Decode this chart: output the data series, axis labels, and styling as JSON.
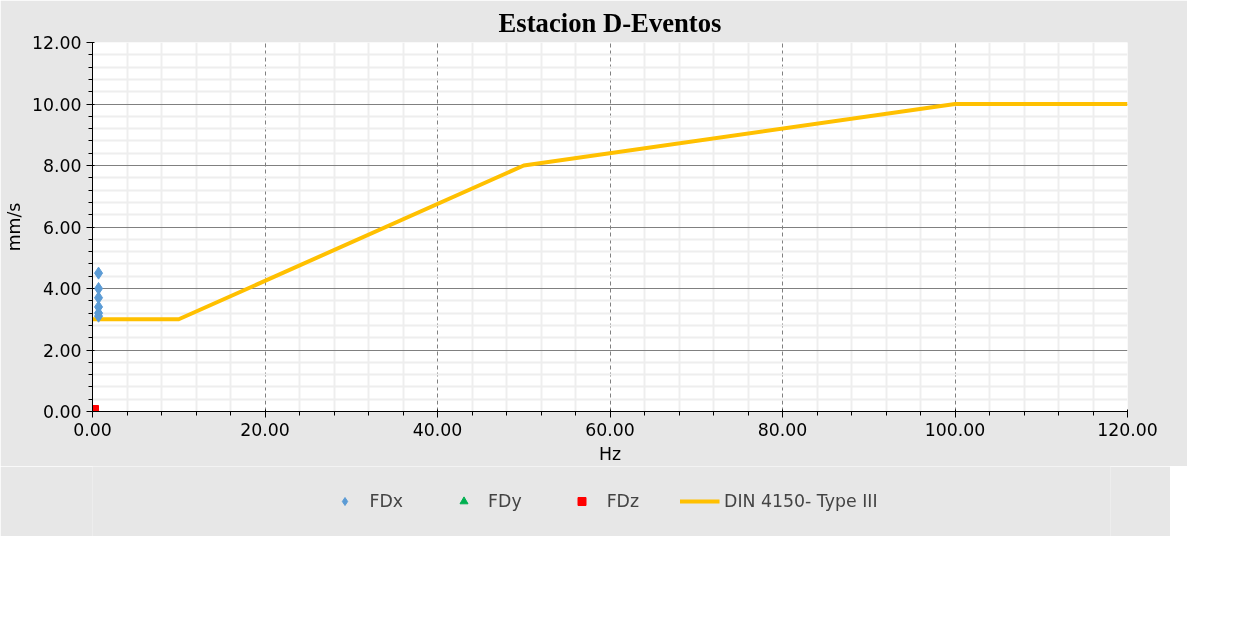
{
  "chart_data": {
    "type": "scatter",
    "title": "Estacion D-Eventos",
    "xlabel": "Hz",
    "ylabel": "mm/s",
    "xlim": [
      0,
      120
    ],
    "ylim": [
      0,
      12
    ],
    "xticks": [
      {
        "value": 0,
        "label": "0.00"
      },
      {
        "value": 20,
        "label": "20.00"
      },
      {
        "value": 40,
        "label": "40.00"
      },
      {
        "value": 60,
        "label": "60.00"
      },
      {
        "value": 80,
        "label": "80.00"
      },
      {
        "value": 100,
        "label": "100.00"
      },
      {
        "value": 120,
        "label": "120.00"
      }
    ],
    "yticks": [
      {
        "value": 0,
        "label": "0.00"
      },
      {
        "value": 2,
        "label": "2.00"
      },
      {
        "value": 4,
        "label": "4.00"
      },
      {
        "value": 6,
        "label": "6.00"
      },
      {
        "value": 8,
        "label": "8.00"
      },
      {
        "value": 10,
        "label": "10.00"
      },
      {
        "value": 12,
        "label": "12.00"
      }
    ],
    "grid": true,
    "legend": "bottom",
    "series": [
      {
        "name": "FDx",
        "marker": "diamond",
        "color": "#5b9bd5",
        "x": [
          0.7,
          0.7,
          0.7,
          0.7,
          0.7,
          0.7
        ],
        "values": [
          4.5,
          4.0,
          3.7,
          3.4,
          3.2,
          3.1
        ]
      },
      {
        "name": "FDy",
        "marker": "triangle",
        "color": "#00b050"
      },
      {
        "name": "FDz",
        "marker": "square",
        "color": "#ff0000",
        "x": [
          0
        ],
        "values": [
          0
        ]
      },
      {
        "name": "DIN 4150- Type III",
        "type": "line",
        "line_style": "solid",
        "color": "#ffc000",
        "x": [
          0,
          10,
          50,
          100,
          120
        ],
        "values": [
          3,
          3,
          8,
          10,
          10
        ]
      }
    ]
  }
}
